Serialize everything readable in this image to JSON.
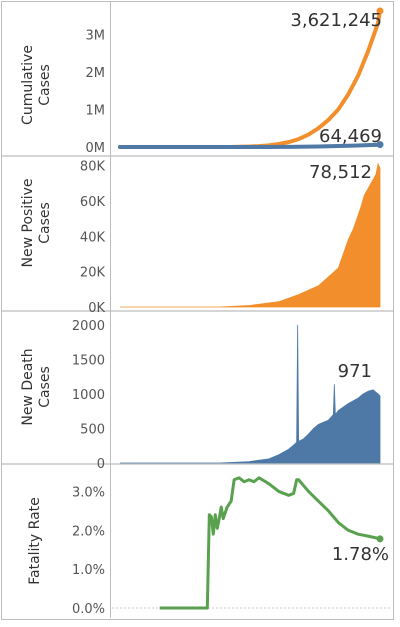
{
  "colors": {
    "cumulative_cases": "#f28e2b",
    "cumulative_deaths": "#4e79a7",
    "new_positive": "#f28e2b",
    "new_death": "#4e79a7",
    "fatality": "#59a14f",
    "border": "#bdbdbd"
  },
  "chart_data": [
    {
      "type": "line",
      "ylabel": "Cumulative Cases",
      "ylim": [
        0,
        3700000
      ],
      "yticks": [
        0,
        1000000,
        2000000,
        3000000
      ],
      "ytick_labels": [
        "0M",
        "1M",
        "2M",
        "3M"
      ],
      "x": [
        0,
        10,
        20,
        30,
        40,
        50,
        60,
        70,
        80,
        90,
        100,
        110,
        120,
        130,
        140,
        150,
        160,
        170,
        180,
        190,
        200,
        210,
        220,
        230,
        240,
        250,
        260,
        262
      ],
      "series": [
        {
          "values": [
            0,
            0,
            0,
            0,
            0,
            0,
            0,
            0,
            0,
            0,
            0,
            1000,
            5000,
            12000,
            25000,
            45000,
            80000,
            130000,
            210000,
            330000,
            500000,
            720000,
            1000000,
            1400000,
            1900000,
            2550000,
            3300000,
            3621245
          ],
          "end_label": "3,621,245"
        },
        {
          "values": [
            0,
            0,
            0,
            0,
            0,
            0,
            0,
            0,
            0,
            0,
            0,
            0,
            0,
            200,
            500,
            1000,
            2000,
            3500,
            6000,
            9500,
            14000,
            19000,
            25000,
            32000,
            40000,
            50000,
            61000,
            64469
          ],
          "end_label": "64,469"
        }
      ]
    },
    {
      "type": "area",
      "ylabel": "New Positive Cases",
      "ylim": [
        0,
        82000
      ],
      "yticks": [
        0,
        20000,
        40000,
        60000,
        80000
      ],
      "ytick_labels": [
        "0K",
        "20K",
        "40K",
        "60K",
        "80K"
      ],
      "x": [
        0,
        100,
        130,
        160,
        180,
        200,
        210,
        220,
        225,
        230,
        235,
        240,
        243,
        246,
        249,
        252,
        255,
        258,
        260,
        262
      ],
      "values": [
        0,
        0,
        800,
        3000,
        7000,
        12000,
        17000,
        22000,
        30000,
        38000,
        44000,
        52000,
        57000,
        63000,
        66000,
        69000,
        72000,
        75000,
        81000,
        78512
      ],
      "end_label": "78,512"
    },
    {
      "type": "area",
      "ylabel": "New Death Cases",
      "ylim": [
        0,
        2100
      ],
      "yticks": [
        0,
        500,
        1000,
        1500,
        2000
      ],
      "ytick_labels": [
        "0",
        "500",
        "1000",
        "1500",
        "2000"
      ],
      "x": [
        0,
        100,
        130,
        150,
        160,
        170,
        175,
        178,
        179,
        180,
        181,
        185,
        190,
        195,
        200,
        210,
        215,
        216,
        217,
        220,
        230,
        240,
        245,
        250,
        255,
        260,
        262
      ],
      "values": [
        0,
        0,
        20,
        60,
        120,
        200,
        260,
        300,
        2000,
        320,
        320,
        350,
        420,
        500,
        560,
        620,
        700,
        1140,
        700,
        760,
        860,
        940,
        1000,
        1040,
        1060,
        1000,
        971
      ],
      "end_label": "971"
    },
    {
      "type": "line",
      "ylabel": "Fatality Rate",
      "ylim": [
        0,
        3.5
      ],
      "yticks": [
        0,
        1,
        2,
        3
      ],
      "ytick_labels": [
        "0.0%",
        "1.0%",
        "2.0%",
        "3.0%"
      ],
      "x": [
        40,
        88,
        90,
        92,
        94,
        96,
        98,
        100,
        102,
        104,
        108,
        112,
        115,
        120,
        125,
        130,
        135,
        140,
        150,
        160,
        170,
        175,
        178,
        180,
        190,
        200,
        210,
        220,
        230,
        240,
        250,
        262
      ],
      "values": [
        0,
        0,
        2.4,
        2.35,
        1.9,
        2.4,
        2.05,
        2.3,
        2.6,
        2.3,
        2.6,
        2.75,
        3.3,
        3.35,
        3.25,
        3.3,
        3.25,
        3.35,
        3.2,
        3.0,
        2.9,
        2.95,
        3.3,
        3.3,
        3.0,
        2.75,
        2.5,
        2.2,
        2.0,
        1.9,
        1.85,
        1.78
      ],
      "end_label": "1.78%"
    }
  ]
}
